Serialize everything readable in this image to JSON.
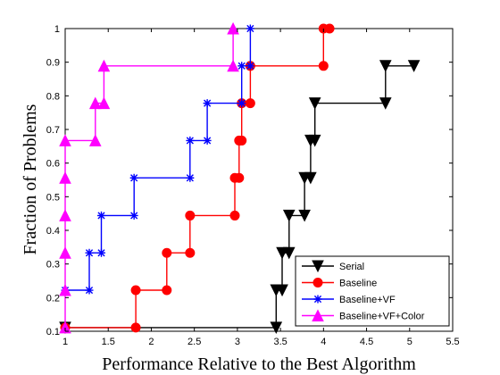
{
  "chart_data": {
    "type": "line",
    "step": "post",
    "xlabel": "Performance Relative to the Best Algorithm",
    "ylabel": "Fraction of Problems",
    "xlim": [
      1,
      5.5
    ],
    "ylim": [
      0.1,
      1
    ],
    "xticks": [
      "1",
      "1.5",
      "2",
      "2.5",
      "3",
      "3.5",
      "4",
      "4.5",
      "5",
      "5.5"
    ],
    "yticks": [
      "0.1",
      "0.2",
      "0.3",
      "0.4",
      "0.5",
      "0.6",
      "0.7",
      "0.8",
      "0.9",
      "1"
    ],
    "grid": false,
    "legend_position": "bottom-right",
    "series": [
      {
        "name": "Serial",
        "color": "#000000",
        "marker": "triangle-down",
        "x": [
          1,
          3.45,
          3.45,
          3.52,
          3.52,
          3.6,
          3.6,
          3.78,
          3.78,
          3.85,
          3.85,
          3.9,
          3.9,
          4.72,
          4.72,
          5.05
        ],
        "y": [
          0.111,
          0.111,
          0.222,
          0.222,
          0.333,
          0.333,
          0.444,
          0.444,
          0.556,
          0.556,
          0.667,
          0.667,
          0.778,
          0.778,
          0.889,
          0.889
        ]
      },
      {
        "name": "Baseline",
        "color": "#ff0000",
        "marker": "circle",
        "x": [
          1,
          1.82,
          1.82,
          2.18,
          2.18,
          2.45,
          2.45,
          2.97,
          2.97,
          3.02,
          3.02,
          3.05,
          3.05,
          3.15,
          3.15,
          4.0,
          4.0,
          4.07
        ],
        "y": [
          0.111,
          0.111,
          0.222,
          0.222,
          0.333,
          0.333,
          0.444,
          0.444,
          0.556,
          0.556,
          0.667,
          0.667,
          0.778,
          0.778,
          0.889,
          0.889,
          1.0,
          1.0
        ]
      },
      {
        "name": "Baseline+VF",
        "color": "#0000ff",
        "marker": "star",
        "x": [
          1,
          1.28,
          1.28,
          1.42,
          1.42,
          1.8,
          1.8,
          2.45,
          2.45,
          2.65,
          2.65,
          3.05,
          3.05,
          3.15,
          3.15
        ],
        "y": [
          0.222,
          0.222,
          0.333,
          0.333,
          0.444,
          0.444,
          0.556,
          0.556,
          0.667,
          0.667,
          0.778,
          0.778,
          0.889,
          0.889,
          1.0
        ]
      },
      {
        "name": "Baseline+VF+Color",
        "color": "#ff00ff",
        "marker": "triangle-up",
        "x": [
          1,
          1,
          1,
          1,
          1,
          1,
          1.35,
          1.35,
          1.45,
          1.45,
          2.95,
          2.95
        ],
        "y": [
          0.111,
          0.222,
          0.333,
          0.444,
          0.556,
          0.667,
          0.667,
          0.778,
          0.778,
          0.889,
          0.889,
          1.0
        ]
      }
    ]
  }
}
